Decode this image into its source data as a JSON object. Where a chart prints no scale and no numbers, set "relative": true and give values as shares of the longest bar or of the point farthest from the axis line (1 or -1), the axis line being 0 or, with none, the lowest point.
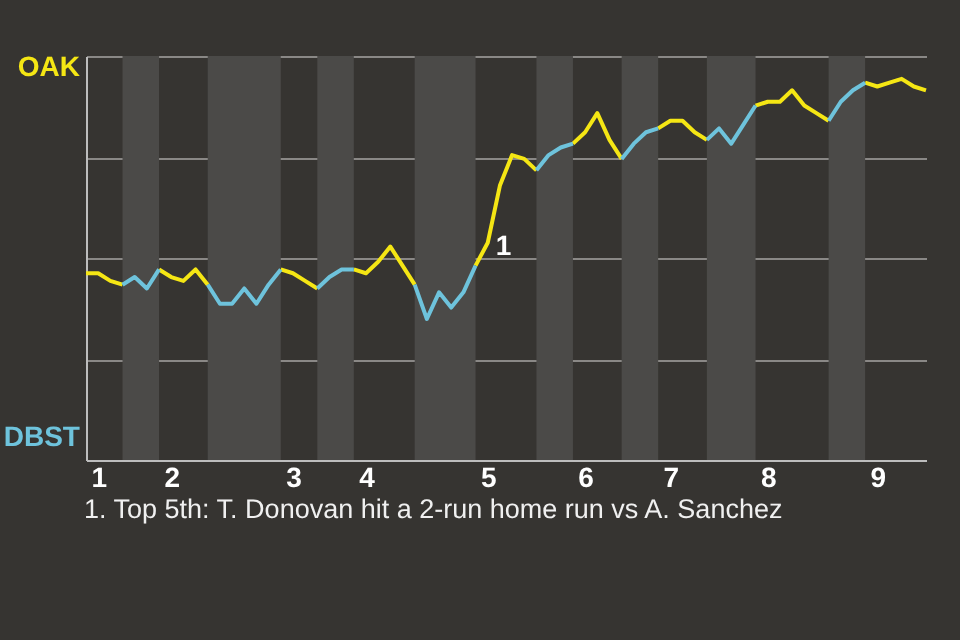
{
  "chart_data": {
    "type": "line",
    "relative": true,
    "categories": [
      null,
      "1",
      null,
      null,
      null,
      null,
      null,
      "2",
      null,
      null,
      null,
      null,
      null,
      null,
      null,
      null,
      null,
      "3",
      null,
      null,
      null,
      null,
      null,
      "4",
      null,
      null,
      null,
      null,
      null,
      null,
      null,
      null,
      null,
      "5",
      null,
      null,
      null,
      null,
      null,
      null,
      null,
      "6",
      null,
      null,
      null,
      null,
      null,
      null,
      "7",
      null,
      null,
      null,
      null,
      null,
      null,
      null,
      "8",
      null,
      null,
      null,
      null,
      null,
      null,
      null,
      null,
      "9",
      null,
      null,
      null,
      null
    ],
    "series": [
      {
        "name": "OAK",
        "color": "#f5e614",
        "values": [
          0.49,
          0.49,
          0.47,
          0.46,
          null,
          null,
          0.5,
          0.48,
          0.47,
          0.5,
          0.46,
          null,
          null,
          null,
          null,
          null,
          0.5,
          0.49,
          0.47,
          0.45,
          null,
          null,
          0.5,
          0.49,
          0.52,
          0.56,
          0.51,
          0.46,
          null,
          null,
          null,
          null,
          0.51,
          0.57,
          0.72,
          0.8,
          0.79,
          0.76,
          null,
          null,
          0.83,
          0.86,
          0.91,
          0.84,
          0.79,
          null,
          null,
          0.87,
          0.89,
          0.89,
          0.86,
          0.84,
          null,
          null,
          null,
          0.93,
          0.94,
          0.94,
          0.97,
          0.93,
          0.91,
          0.89,
          null,
          null,
          0.99,
          0.98,
          0.99,
          1,
          0.98,
          0.97
        ]
      },
      {
        "name": "DBST",
        "color": "#6ec3dc",
        "values": [
          null,
          null,
          null,
          0.46,
          0.48,
          0.45,
          0.5,
          null,
          null,
          null,
          0.46,
          0.41,
          0.41,
          0.45,
          0.41,
          0.46,
          0.5,
          null,
          null,
          0.45,
          0.48,
          0.5,
          0.5,
          null,
          null,
          null,
          null,
          0.46,
          0.37,
          0.44,
          0.4,
          0.44,
          0.51,
          null,
          null,
          null,
          null,
          0.76,
          0.8,
          0.82,
          0.83,
          null,
          null,
          null,
          0.79,
          0.83,
          0.86,
          0.87,
          null,
          null,
          null,
          0.84,
          0.87,
          0.83,
          0.88,
          0.93,
          null,
          null,
          null,
          null,
          null,
          0.89,
          0.94,
          0.97,
          0.99,
          null,
          null,
          null,
          null,
          null
        ]
      }
    ],
    "grid": "y",
    "annotations": [
      {
        "text": "1",
        "x": "5",
        "y": 0.57
      },
      "1. Top 5th: T. Donovan hit a 2-run home run vs A. Sanchez"
    ]
  }
}
